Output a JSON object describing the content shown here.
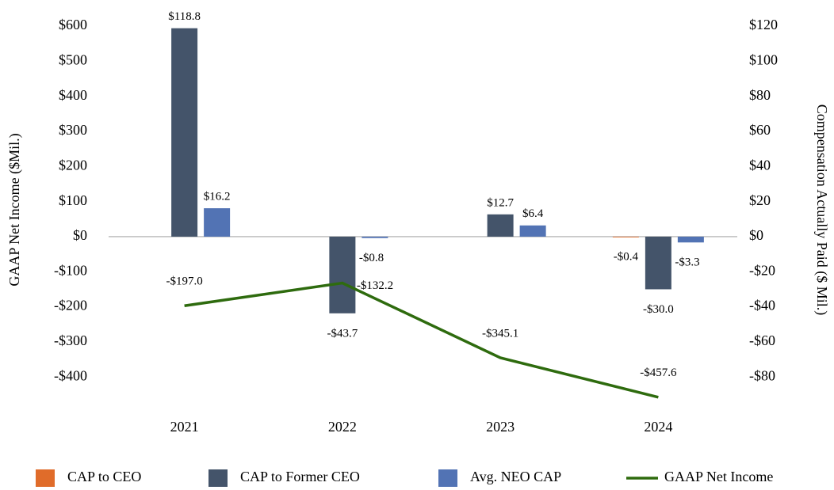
{
  "chart_data": {
    "type": "bar",
    "categories": [
      "2021",
      "2022",
      "2023",
      "2024"
    ],
    "y_label": "GAAP Net Income ($Mil.)",
    "y2_label": "Compensation Actually Paid ($ Mil.)",
    "ylim": [
      -470,
      630
    ],
    "yticks": [
      {
        "value": -400,
        "label": "-$400"
      },
      {
        "value": -300,
        "label": "-$300"
      },
      {
        "value": -200,
        "label": "-$200"
      },
      {
        "value": -100,
        "label": "-$100"
      },
      {
        "value": 0,
        "label": "$0"
      },
      {
        "value": 100,
        "label": "$100"
      },
      {
        "value": 200,
        "label": "$200"
      },
      {
        "value": 300,
        "label": "$300"
      },
      {
        "value": 400,
        "label": "$400"
      },
      {
        "value": 500,
        "label": "$500"
      },
      {
        "value": 600,
        "label": "$600"
      }
    ],
    "y2lim": [
      -94,
      126
    ],
    "y2ticks": [
      {
        "value": -80,
        "label": "-$80"
      },
      {
        "value": -60,
        "label": "-$60"
      },
      {
        "value": -40,
        "label": "-$40"
      },
      {
        "value": -20,
        "label": "-$20"
      },
      {
        "value": 0,
        "label": "$0"
      },
      {
        "value": 20,
        "label": "$20"
      },
      {
        "value": 40,
        "label": "$40"
      },
      {
        "value": 60,
        "label": "$60"
      },
      {
        "value": 80,
        "label": "$80"
      },
      {
        "value": 100,
        "label": "$100"
      },
      {
        "value": 120,
        "label": "$120"
      }
    ],
    "grid": false,
    "legend": "bottom",
    "series": [
      {
        "name": "CAP to CEO",
        "type": "bar",
        "axis": "y2",
        "color": "#e06c2a",
        "values": [
          null,
          null,
          null,
          -0.4
        ],
        "value_labels": [
          null,
          null,
          null,
          "-$0.4"
        ]
      },
      {
        "name": "CAP to Former CEO",
        "type": "bar",
        "axis": "y2",
        "color": "#44546a",
        "values": [
          118.8,
          -43.7,
          12.7,
          -30.0
        ],
        "value_labels": [
          "$118.8",
          "-$43.7",
          "$12.7",
          "-$30.0"
        ]
      },
      {
        "name": "Avg. NEO CAP",
        "type": "bar",
        "axis": "y2",
        "color": "#5273b4",
        "values": [
          16.2,
          -0.8,
          6.4,
          -3.3
        ],
        "value_labels": [
          "$16.2",
          "-$0.8",
          "$6.4",
          "-$3.3"
        ]
      },
      {
        "name": "GAAP Net Income",
        "type": "line",
        "axis": "y",
        "color": "#2e6b0e",
        "values": [
          -197.0,
          -132.2,
          -345.1,
          -457.6
        ],
        "value_labels": [
          "-$197.0",
          "-$132.2",
          "-$345.1",
          "-$457.6"
        ]
      }
    ]
  }
}
